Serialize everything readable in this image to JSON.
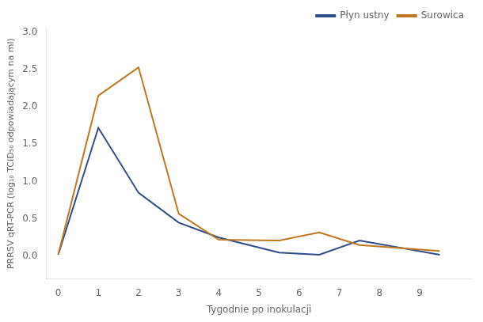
{
  "chart_data": {
    "type": "line",
    "xlabel": "Tygodnie po inokulacji",
    "ylabel": "PRRSV qRT-PCR (log₁₀ TCID₅₀ odpowiadającym na ml)",
    "x": [
      0,
      1,
      2,
      3,
      4,
      5.5,
      6.5,
      7.5,
      9.5
    ],
    "series": [
      {
        "name": "Surowica",
        "color": "#C07820",
        "values": [
          0.02,
          2.15,
          2.53,
          0.57,
          0.22,
          0.21,
          0.32,
          0.15,
          0.07
        ]
      },
      {
        "name": "Płyn ustny",
        "color": "#2E4C8C",
        "values": [
          0.02,
          1.72,
          0.85,
          0.45,
          0.25,
          0.05,
          0.02,
          0.21,
          0.02
        ]
      }
    ],
    "xlim": [
      -0.3,
      10.3
    ],
    "xticks": [
      0,
      1,
      2,
      3,
      4,
      5,
      6,
      7,
      8,
      9
    ],
    "ylim": [
      -0.3,
      3.05
    ],
    "yticks": [
      {
        "value": 0.0,
        "label": "0.0"
      },
      0.5,
      {
        "value": 1.0,
        "label": "1.0"
      },
      1.5,
      {
        "value": 2.0,
        "label": "2.0"
      },
      2.5,
      {
        "value": 3.0,
        "label": "3.0"
      }
    ],
    "grid": false,
    "legend": "upper right"
  }
}
